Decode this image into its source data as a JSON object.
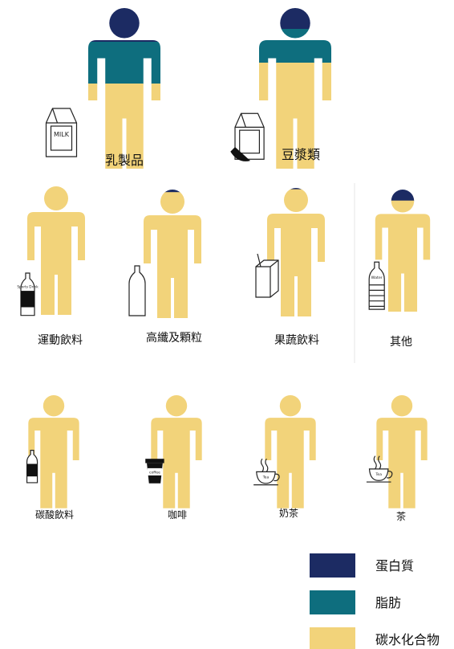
{
  "chart_data": {
    "type": "table",
    "colors": {
      "protein": "#1c2b63",
      "fat": "#0e6e7e",
      "carbohydrate": "#f2d37a"
    },
    "legend": {
      "placement": "bottom-right",
      "items": [
        {
          "key": "protein",
          "label": "蛋白質"
        },
        {
          "key": "fat",
          "label": "脂肪"
        },
        {
          "key": "carbohydrate",
          "label": "碳水化合物"
        }
      ]
    },
    "categories": [
      {
        "label": "乳製品",
        "protein": 0.21,
        "fat": 0.26,
        "carbohydrate": 0.53,
        "icon": "milk-carton-icon",
        "pkg_text": "MILK"
      },
      {
        "label": "豆漿類",
        "protein": 0.13,
        "fat": 0.21,
        "carbohydrate": 0.66,
        "icon": "soymilk-carton-icon",
        "pkg_text": ""
      },
      {
        "label": "運動飲料",
        "protein": 0.0,
        "fat": 0.0,
        "carbohydrate": 1.0,
        "icon": "sports-drink-bottle-icon",
        "pkg_text": "Sports Drink"
      },
      {
        "label": "高纖及顆粒",
        "protein": 0.02,
        "fat": 0.0,
        "carbohydrate": 0.98,
        "icon": "grain-drink-bottle-icon",
        "pkg_text": ""
      },
      {
        "label": "果蔬飲料",
        "protein": 0.01,
        "fat": 0.0,
        "carbohydrate": 0.99,
        "icon": "juice-box-icon",
        "pkg_text": ""
      },
      {
        "label": "其他",
        "protein": 0.09,
        "fat": 0.0,
        "carbohydrate": 0.91,
        "icon": "water-bottle-icon",
        "pkg_text": "Water"
      },
      {
        "label": "碳酸飲料",
        "protein": 0.0,
        "fat": 0.0,
        "carbohydrate": 1.0,
        "icon": "soda-bottle-icon",
        "pkg_text": ""
      },
      {
        "label": "咖啡",
        "protein": 0.0,
        "fat": 0.0,
        "carbohydrate": 1.0,
        "icon": "coffee-cup-icon",
        "pkg_text": "coffee"
      },
      {
        "label": "奶茶",
        "protein": 0.0,
        "fat": 0.0,
        "carbohydrate": 1.0,
        "icon": "tea-cup-icon",
        "pkg_text": "Tea"
      },
      {
        "label": "茶",
        "protein": 0.0,
        "fat": 0.0,
        "carbohydrate": 1.0,
        "icon": "tea-cup-icon",
        "pkg_text": "Tea"
      }
    ]
  }
}
